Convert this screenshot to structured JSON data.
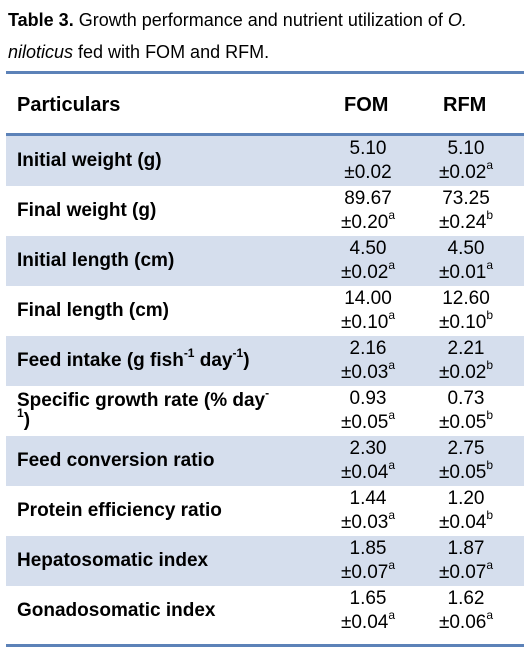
{
  "caption": {
    "label": "Table 3.",
    "text_before": " Growth performance and nutrient utilization of ",
    "species_line1": "O.",
    "species_line2": "niloticus",
    "text_after": " fed with FOM and RFM."
  },
  "header": {
    "particulars": "Particulars",
    "fom": "FOM",
    "rfm": "RFM"
  },
  "rows": [
    {
      "label": "Initial weight (g)",
      "fom": "5.10",
      "fom_sd": "±0.02",
      "fom_sup": "",
      "rfm": "5.10",
      "rfm_sd": "±0.02",
      "rfm_sup": "a"
    },
    {
      "label": "Final weight (g)",
      "fom": "89.67",
      "fom_sd": "±0.20",
      "fom_sup": "a",
      "rfm": "73.25",
      "rfm_sd": "±0.24",
      "rfm_sup": "b"
    },
    {
      "label": "Initial length (cm)",
      "fom": "4.50",
      "fom_sd": "±0.02",
      "fom_sup": "a",
      "rfm": "4.50",
      "rfm_sd": "±0.01",
      "rfm_sup": "a"
    },
    {
      "label": "Final length (cm)",
      "fom": "14.00",
      "fom_sd": "±0.10",
      "fom_sup": "a",
      "rfm": "12.60",
      "rfm_sd": "±0.10",
      "rfm_sup": "b"
    },
    {
      "label_a": "Feed intake (g fish",
      "label_sup1": "-1",
      "label_b": " day",
      "label_sup2": "-1",
      "label_c": ")",
      "fom": "2.16",
      "fom_sd": "±0.03",
      "fom_sup": "a",
      "rfm": "2.21",
      "rfm_sd": "±0.02",
      "rfm_sup": "b"
    },
    {
      "label_a": "Specific growth rate (% day",
      "label_sup1": "-",
      "label_b": "",
      "label_line2_sup": "1",
      "label_c": ")",
      "fom": "0.93",
      "fom_sd": "±0.05",
      "fom_sup": "a",
      "rfm": "0.73",
      "rfm_sd": "±0.05",
      "rfm_sup": "b"
    },
    {
      "label": "Feed conversion ratio",
      "fom": "2.30",
      "fom_sd": "±0.04",
      "fom_sup": "a",
      "rfm": "2.75",
      "rfm_sd": "±0.05",
      "rfm_sup": "b"
    },
    {
      "label": "Protein efficiency ratio",
      "fom": "1.44",
      "fom_sd": "±0.03",
      "fom_sup": "a",
      "rfm": "1.20",
      "rfm_sd": "±0.04",
      "rfm_sup": "b"
    },
    {
      "label": "Hepatosomatic index",
      "fom": "1.85",
      "fom_sd": "±0.07",
      "fom_sup": "a",
      "rfm": "1.87",
      "rfm_sd": "±0.07",
      "rfm_sup": "a"
    },
    {
      "label": "Gonadosomatic index",
      "fom": "1.65",
      "fom_sd": "±0.04",
      "fom_sup": "a",
      "rfm": "1.62",
      "rfm_sd": "±0.06",
      "rfm_sup": "a"
    }
  ]
}
